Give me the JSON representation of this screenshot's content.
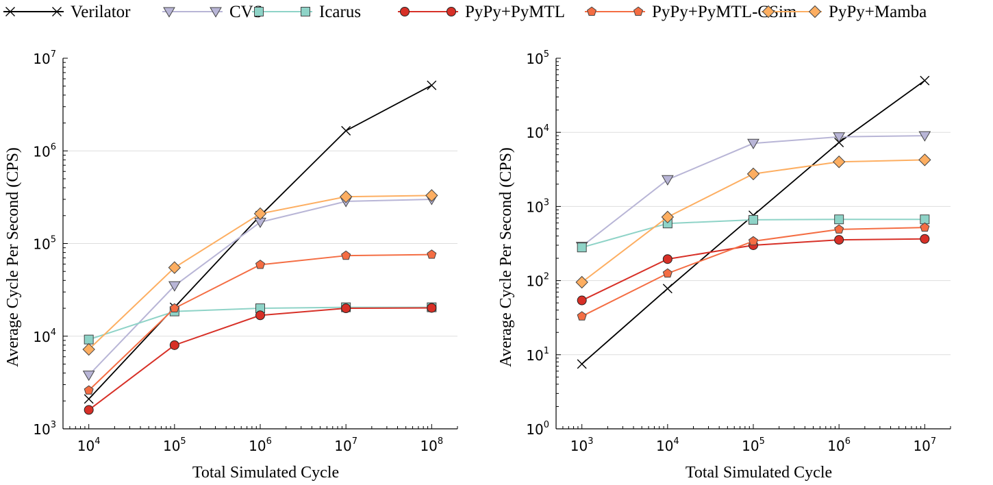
{
  "legend": {
    "placement": "top",
    "items": [
      {
        "label": "Verilator",
        "color": "#000000",
        "marker": "x-icon"
      },
      {
        "label": "CVS",
        "color": "#b8b5d6",
        "marker": "triangle-down-icon"
      },
      {
        "label": "Icarus",
        "color": "#8ed3c7",
        "marker": "square-icon"
      },
      {
        "label": "PyPy+PyMTL",
        "color": "#d73027",
        "marker": "circle-icon"
      },
      {
        "label": "PyPy+PyMTL-CSim",
        "color": "#f46d43",
        "marker": "pentagon-icon"
      },
      {
        "label": "PyPy+Mamba",
        "color": "#fdae61",
        "marker": "diamond-icon"
      }
    ]
  },
  "chart_data": [
    {
      "type": "line",
      "xscale": "log",
      "yscale": "log",
      "xlabel": "Total Simulated Cycle",
      "ylabel": "Average Cycle Per Second (CPS)",
      "xlim": [
        5000,
        200000000
      ],
      "ylim": [
        1000,
        10000000
      ],
      "grid": "horizontal",
      "x": [
        10000,
        100000,
        1000000,
        10000000,
        100000000
      ],
      "xticks": [
        {
          "base": "10",
          "exp": "4"
        },
        {
          "base": "10",
          "exp": "5"
        },
        {
          "base": "10",
          "exp": "6"
        },
        {
          "base": "10",
          "exp": "7"
        },
        {
          "base": "10",
          "exp": "8"
        }
      ],
      "yticks": [
        {
          "base": "10",
          "exp": "3"
        },
        {
          "base": "10",
          "exp": "4"
        },
        {
          "base": "10",
          "exp": "5"
        },
        {
          "base": "10",
          "exp": "6"
        },
        {
          "base": "10",
          "exp": "7"
        }
      ],
      "series": [
        {
          "name": "Verilator",
          "values": [
            2100,
            20500,
            200000,
            1650000,
            5100000
          ]
        },
        {
          "name": "CVS",
          "values": [
            3800,
            35000,
            170000,
            285000,
            300000
          ]
        },
        {
          "name": "Icarus",
          "values": [
            9200,
            18500,
            20000,
            20500,
            20500
          ]
        },
        {
          "name": "PyPy+PyMTL",
          "values": [
            1600,
            8000,
            16800,
            20000,
            20200
          ]
        },
        {
          "name": "PyPy+PyMTL-CSim",
          "values": [
            2600,
            20000,
            59000,
            74000,
            76000
          ]
        },
        {
          "name": "PyPy+Mamba",
          "values": [
            7200,
            55000,
            210000,
            320000,
            330000
          ]
        }
      ]
    },
    {
      "type": "line",
      "xscale": "log",
      "yscale": "log",
      "xlabel": "Total Simulated Cycle",
      "ylabel": "Average Cycle Per Second (CPS)",
      "xlim": [
        500,
        20000000
      ],
      "ylim": [
        1,
        100000
      ],
      "grid": "horizontal",
      "x": [
        1000,
        10000,
        100000,
        1000000,
        10000000
      ],
      "xticks": [
        {
          "base": "10",
          "exp": "3"
        },
        {
          "base": "10",
          "exp": "4"
        },
        {
          "base": "10",
          "exp": "5"
        },
        {
          "base": "10",
          "exp": "6"
        },
        {
          "base": "10",
          "exp": "7"
        }
      ],
      "yticks": [
        {
          "base": "10",
          "exp": "0"
        },
        {
          "base": "10",
          "exp": "1"
        },
        {
          "base": "10",
          "exp": "2"
        },
        {
          "base": "10",
          "exp": "3"
        },
        {
          "base": "10",
          "exp": "4"
        },
        {
          "base": "10",
          "exp": "5"
        }
      ],
      "series": [
        {
          "name": "Verilator",
          "values": [
            7.5,
            78,
            760,
            7300,
            50000
          ]
        },
        {
          "name": "CVS",
          "values": [
            290,
            2300,
            7100,
            8700,
            9000
          ]
        },
        {
          "name": "Icarus",
          "values": [
            280,
            590,
            660,
            670,
            670
          ]
        },
        {
          "name": "PyPy+PyMTL",
          "values": [
            54,
            195,
            300,
            355,
            365
          ]
        },
        {
          "name": "PyPy+PyMTL-CSim",
          "values": [
            33,
            125,
            340,
            490,
            520
          ]
        },
        {
          "name": "PyPy+Mamba",
          "values": [
            95,
            720,
            2750,
            4000,
            4250
          ]
        }
      ]
    }
  ]
}
